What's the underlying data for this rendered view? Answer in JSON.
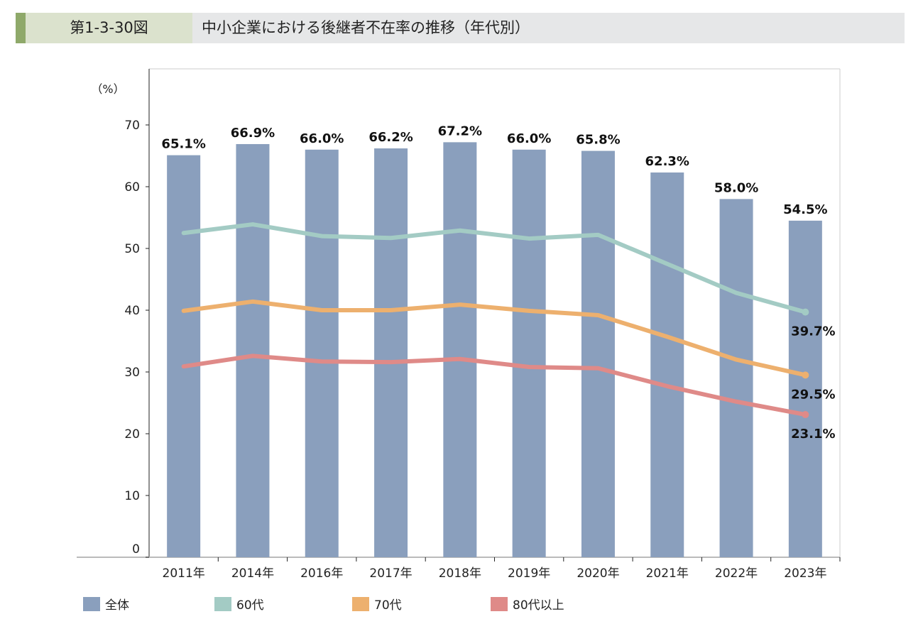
{
  "header": {
    "figure_number": "第1-3-30図",
    "title": "中小企業における後継者不在率の推移（年代別）"
  },
  "chart_data": {
    "type": "bar+line",
    "title": "中小企業における後継者不在率の推移（年代別）",
    "ylabel": "（%）",
    "ylim": [
      0,
      79
    ],
    "yticks": [
      0,
      10,
      20,
      30,
      40,
      50,
      60,
      70
    ],
    "grid": false,
    "legend_placement": "bottom",
    "categories": [
      "2011年",
      "2014年",
      "2016年",
      "2017年",
      "2018年",
      "2019年",
      "2020年",
      "2021年",
      "2022年",
      "2023年"
    ],
    "bar_series": {
      "name": "全体",
      "color": "#8a9fbd",
      "values": [
        65.1,
        66.9,
        66.0,
        66.2,
        67.2,
        66.0,
        65.8,
        62.3,
        58.0,
        54.5
      ],
      "labels": [
        "65.1%",
        "66.9%",
        "66.0%",
        "66.2%",
        "67.2%",
        "66.0%",
        "65.8%",
        "62.3%",
        "58.0%",
        "54.5%"
      ]
    },
    "line_series": [
      {
        "name": "60代",
        "color": "#a3cbc4",
        "values": [
          52.5,
          53.9,
          52.0,
          51.7,
          52.9,
          51.6,
          52.2,
          47.5,
          42.8,
          39.7
        ],
        "end_label": "39.7%"
      },
      {
        "name": "70代",
        "color": "#edb06e",
        "values": [
          39.9,
          41.4,
          40.0,
          40.0,
          40.9,
          39.9,
          39.2,
          35.7,
          32.0,
          29.5
        ],
        "end_label": "29.5%"
      },
      {
        "name": "80代以上",
        "color": "#df8a88",
        "values": [
          30.9,
          32.6,
          31.7,
          31.6,
          32.1,
          30.8,
          30.6,
          27.7,
          25.2,
          23.1
        ],
        "end_label": "23.1%"
      }
    ]
  }
}
